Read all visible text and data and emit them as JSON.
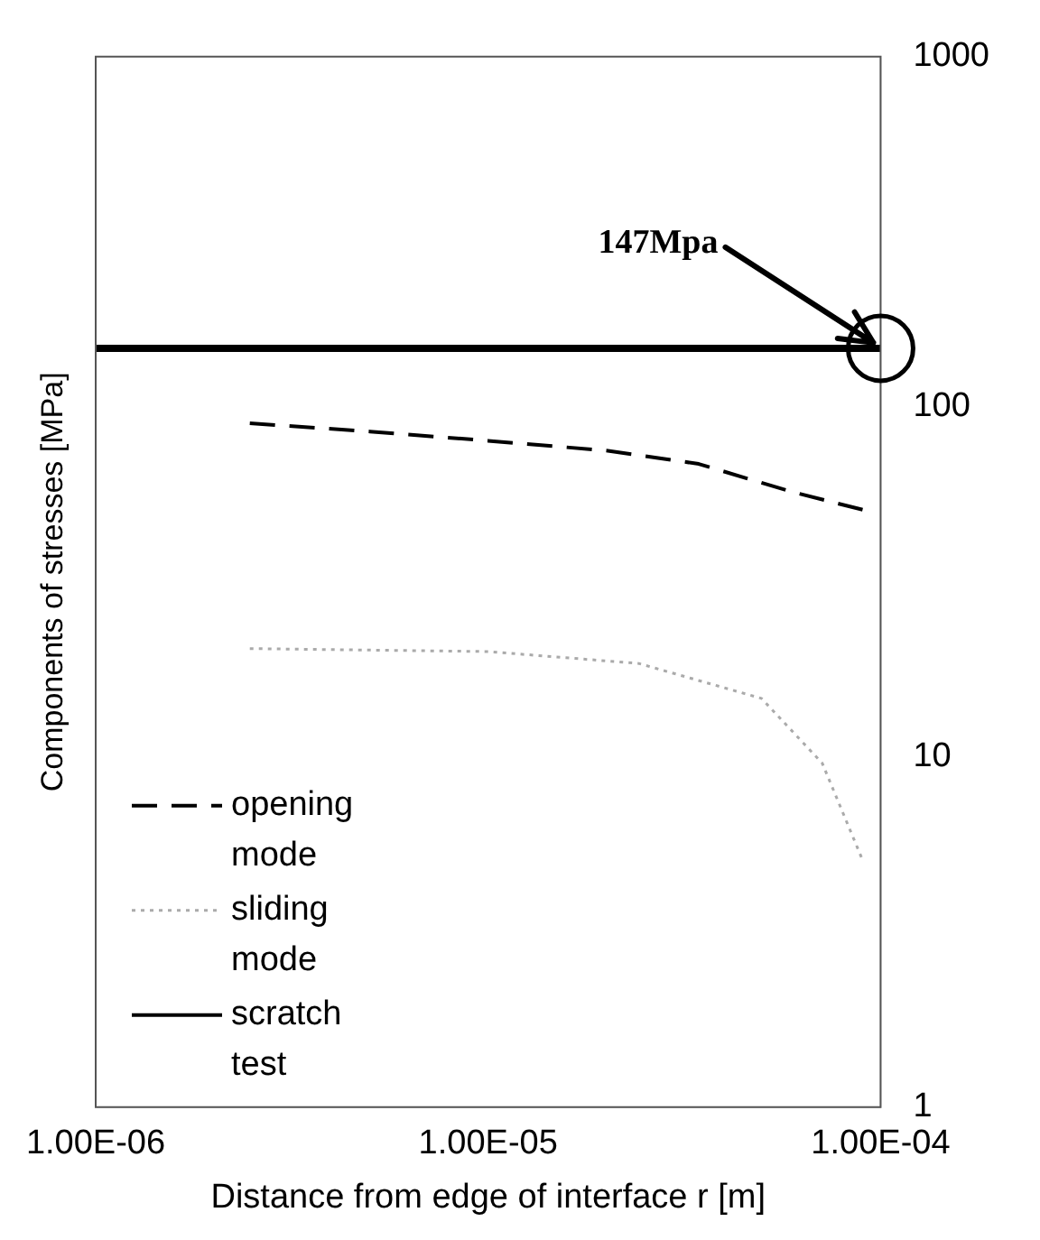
{
  "chart_data": {
    "type": "line",
    "xlabel": "Distance from edge of interface r [m]",
    "ylabel": "Components of stresses [MPa]",
    "log": "xy",
    "xlim": [
      1e-06,
      0.0001
    ],
    "ylim": [
      1,
      1000
    ],
    "xticks": [
      {
        "value": 1e-06,
        "label": "1.00E-06"
      },
      {
        "value": 1e-05,
        "label": "1.00E-05"
      },
      {
        "value": 0.0001,
        "label": "1.00E-04"
      }
    ],
    "yticks": [
      1,
      10,
      100,
      1000
    ],
    "grid": false,
    "legend": "bottom left",
    "series": [
      {
        "name": "opening mode",
        "color": "#000000",
        "line_style": "dashed",
        "x": [
          2.47e-06,
          5e-06,
          1e-05,
          2e-05,
          3.44e-05,
          5.9e-05,
          9.08e-05
        ],
        "values": [
          89.7,
          85,
          80,
          75,
          68.7,
          57.3,
          50.7
        ]
      },
      {
        "name": "sliding mode",
        "color": "#aaaaaa",
        "line_style": "dotted",
        "x": [
          2.47e-06,
          5e-06,
          1e-05,
          2.42e-05,
          4.97e-05,
          7.1e-05,
          8.98e-05
        ],
        "values": [
          20.4,
          20.2,
          20,
          18.5,
          14.7,
          9.6,
          5.1
        ]
      },
      {
        "name": "scratch test",
        "color": "#000000",
        "line_style": "solid",
        "x": [
          1e-06,
          0.0001
        ],
        "values": [
          147,
          147
        ]
      }
    ],
    "annotations": [
      {
        "text": "147Mpa",
        "x": 0.0001,
        "y": 147
      }
    ]
  }
}
